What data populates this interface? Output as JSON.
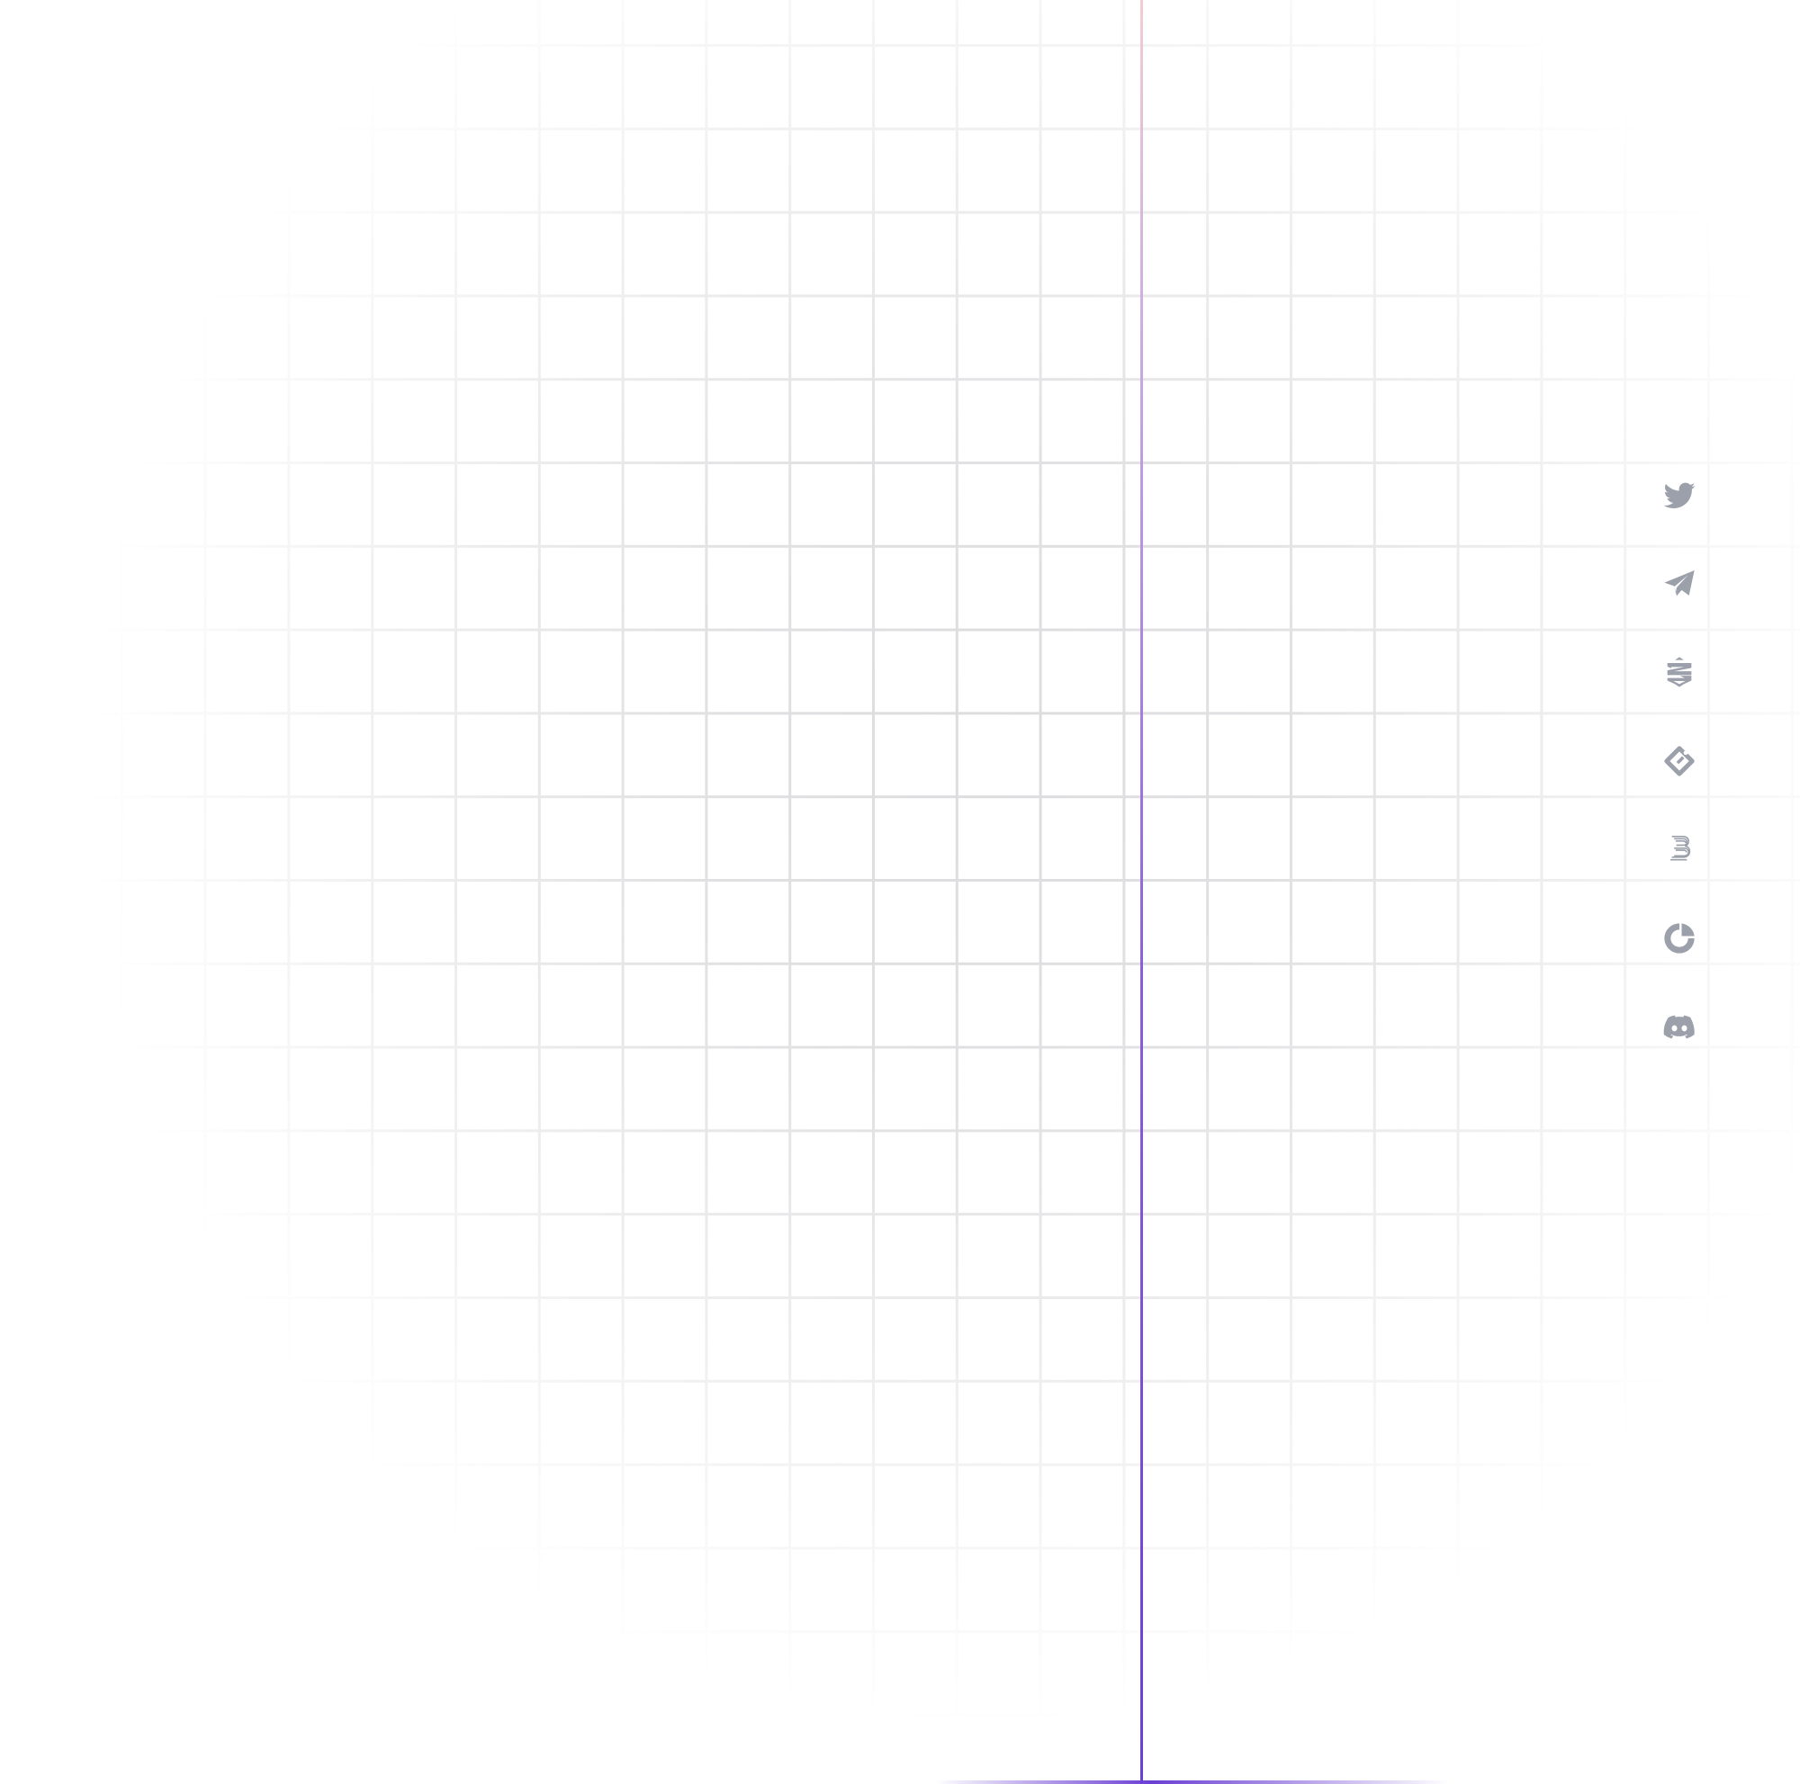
{
  "background": {
    "color": "#ffffff",
    "grid_line_color": "#dcdcde",
    "accent_line_color": "#6b3fd3"
  },
  "social_links": [
    {
      "icon": "twitter-icon",
      "label": ""
    },
    {
      "icon": "telegram-icon",
      "label": ""
    },
    {
      "icon": "exchange-icon",
      "label": ""
    },
    {
      "icon": "diamond-icon",
      "label": ""
    },
    {
      "icon": "letter-b-icon",
      "label": ""
    },
    {
      "icon": "coingecko-icon",
      "label": ""
    },
    {
      "icon": "discord-icon",
      "label": ""
    }
  ],
  "icon_color": "#9ca0aa"
}
